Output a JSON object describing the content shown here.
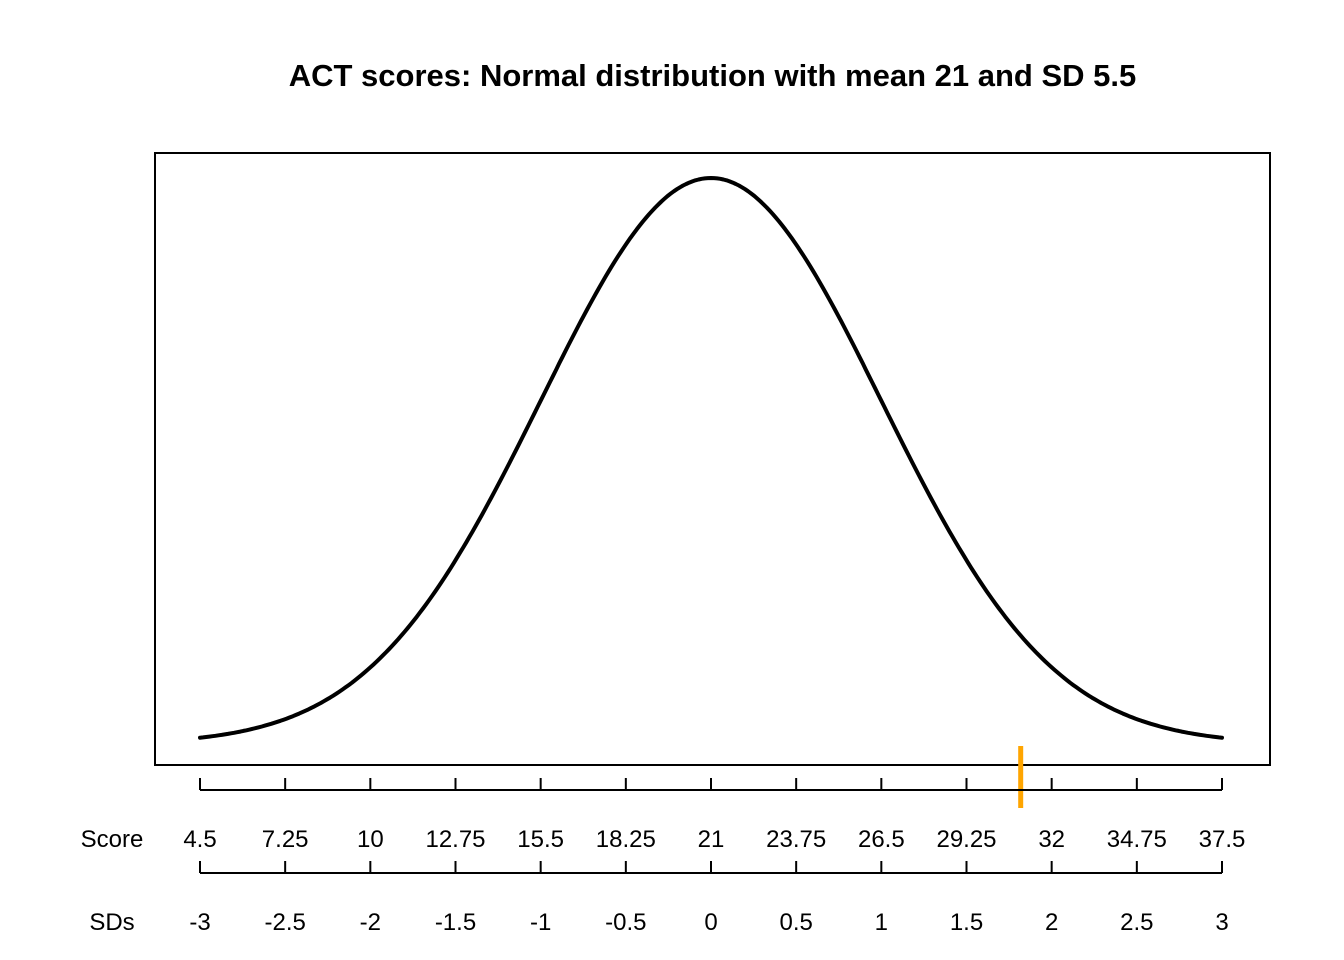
{
  "title": "ACT scores: Normal distribution with mean 21 and SD 5.5",
  "chart_data": {
    "type": "line",
    "title": "ACT scores: Normal distribution with mean 21 and SD 5.5",
    "description": "Normal (bell) density curve of ACT scores",
    "distribution": {
      "mean": 21,
      "sd": 5.5
    },
    "x_range": [
      4.5,
      37.5
    ],
    "curve_color": "#000000",
    "background_color": "#ffffff",
    "marker": {
      "score": 31,
      "color": "#FFA500"
    },
    "axes": [
      {
        "label": "Score",
        "ticks": [
          4.5,
          7.25,
          10,
          12.75,
          15.5,
          18.25,
          21,
          23.75,
          26.5,
          29.25,
          32,
          34.75,
          37.5
        ]
      },
      {
        "label": "SDs",
        "ticks": [
          -3,
          -2.5,
          -2,
          -1.5,
          -1,
          -0.5,
          0,
          0.5,
          1,
          1.5,
          2,
          2.5,
          3
        ]
      }
    ],
    "legend": "none",
    "grid": false
  }
}
